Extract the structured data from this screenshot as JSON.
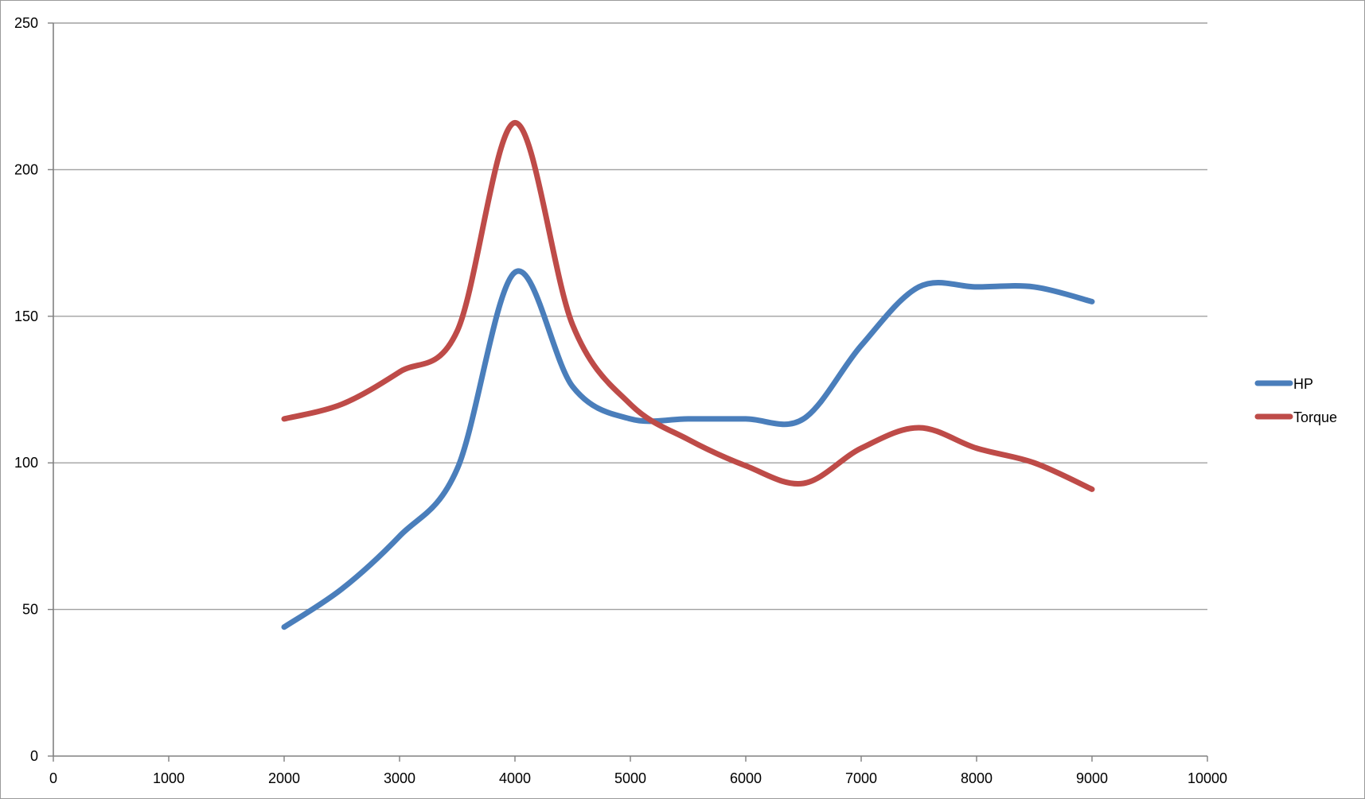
{
  "chart_data": {
    "type": "line",
    "title": "",
    "xlabel": "",
    "ylabel": "",
    "xlim": [
      0,
      10000
    ],
    "ylim": [
      0,
      250
    ],
    "x_ticks": [
      0,
      1000,
      2000,
      3000,
      4000,
      5000,
      6000,
      7000,
      8000,
      9000,
      10000
    ],
    "y_ticks": [
      0,
      50,
      100,
      150,
      200,
      250
    ],
    "grid": "horizontal",
    "legend": "right",
    "smooth": true,
    "x": [
      2000,
      2500,
      3000,
      3500,
      4000,
      4500,
      5000,
      5500,
      6000,
      6500,
      7000,
      7500,
      8000,
      8500,
      9000
    ],
    "series": [
      {
        "name": "HP",
        "color": "#4a7ebb",
        "values": [
          44,
          57,
          75,
          98,
          165,
          126,
          115,
          115,
          115,
          115,
          140,
          160,
          160,
          160,
          155
        ]
      },
      {
        "name": "Torque",
        "color": "#be4b48",
        "values": [
          115,
          120,
          131,
          145,
          216,
          147,
          120,
          108,
          99,
          93,
          105,
          112,
          105,
          100,
          91
        ]
      }
    ]
  }
}
